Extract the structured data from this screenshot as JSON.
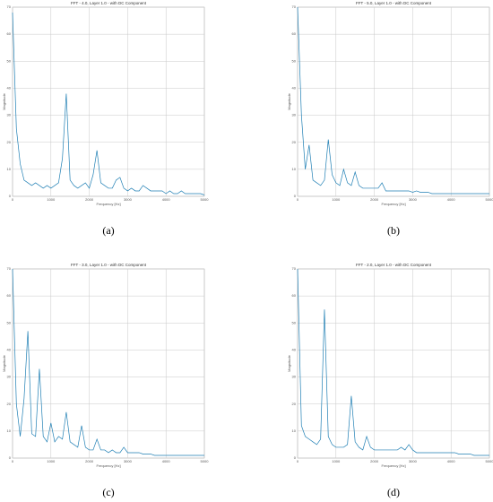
{
  "chart_data": [
    {
      "type": "line",
      "label": "(a)",
      "title": "FFT - 4.0, Layer 1.0 - with DC Component",
      "x_label": "Frequency [Hz]",
      "y_label": "Magnitude",
      "x": [
        0,
        100,
        200,
        300,
        400,
        500,
        600,
        700,
        800,
        900,
        1000,
        1100,
        1200,
        1300,
        1400,
        1500,
        1600,
        1700,
        1800,
        1900,
        2000,
        2100,
        2200,
        2300,
        2400,
        2500,
        2600,
        2700,
        2800,
        2900,
        3000,
        3100,
        3200,
        3300,
        3400,
        3500,
        3600,
        3700,
        3800,
        3900,
        4000,
        4100,
        4200,
        4300,
        4400,
        4500,
        4600,
        4700,
        4800,
        4900,
        5000
      ],
      "series": [
        {
          "name": "FFT",
          "color": "#1f7fb4",
          "values": [
            68,
            25,
            12,
            6,
            5,
            4,
            5,
            4,
            3,
            4,
            3,
            4,
            5,
            14,
            38,
            6,
            4,
            3,
            4,
            5,
            3,
            8,
            17,
            5,
            4,
            3,
            3,
            6,
            7,
            3,
            2,
            3,
            2,
            2,
            4,
            3,
            2,
            2,
            2,
            2,
            1,
            2,
            1,
            1,
            2,
            1,
            1,
            1,
            1,
            1,
            0.5
          ]
        }
      ],
      "xlim": [
        0,
        5000
      ],
      "xticks": [
        0,
        1000,
        2000,
        3000,
        4000,
        5000
      ],
      "ylim": [
        0,
        70
      ],
      "yticks": [
        0,
        10,
        20,
        30,
        40,
        50,
        60,
        70
      ],
      "grid": true
    },
    {
      "type": "line",
      "label": "(b)",
      "title": "FFT - 5.0, Layer 1.0 - with DC Component",
      "x_label": "Frequency [Hz]",
      "y_label": "Magnitude",
      "x": [
        0,
        100,
        200,
        300,
        400,
        500,
        600,
        700,
        800,
        900,
        1000,
        1100,
        1200,
        1300,
        1400,
        1500,
        1600,
        1700,
        1800,
        1900,
        2000,
        2100,
        2200,
        2300,
        2400,
        2500,
        2600,
        2700,
        2800,
        2900,
        3000,
        3100,
        3200,
        3300,
        3400,
        3500,
        3600,
        3700,
        3800,
        3900,
        4000,
        4100,
        4200,
        4300,
        4400,
        4500,
        4600,
        4700,
        4800,
        4900,
        5000
      ],
      "series": [
        {
          "name": "FFT",
          "color": "#1f7fb4",
          "values": [
            70,
            30,
            10,
            19,
            6,
            5,
            4,
            6,
            21,
            8,
            5,
            4,
            10,
            5,
            4,
            9,
            4,
            3,
            3,
            3,
            3,
            3,
            5,
            2,
            2,
            2,
            2,
            2,
            2,
            2,
            1.5,
            2,
            1.5,
            1.5,
            1.5,
            1,
            1,
            1,
            1,
            1,
            1,
            1,
            1,
            1,
            1,
            1,
            1,
            1,
            1,
            1,
            1
          ]
        }
      ],
      "xlim": [
        0,
        5000
      ],
      "xticks": [
        0,
        1000,
        2000,
        3000,
        4000,
        5000
      ],
      "ylim": [
        0,
        70
      ],
      "yticks": [
        0,
        10,
        20,
        30,
        40,
        50,
        60,
        70
      ],
      "grid": true
    },
    {
      "type": "line",
      "label": "(c)",
      "title": "FFT - 3.0, Layer 1.0 - with DC Component",
      "x_label": "Frequency [Hz]",
      "y_label": "Magnitude",
      "x": [
        0,
        100,
        200,
        300,
        400,
        500,
        600,
        700,
        800,
        900,
        1000,
        1100,
        1200,
        1300,
        1400,
        1500,
        1600,
        1700,
        1800,
        1900,
        2000,
        2100,
        2200,
        2300,
        2400,
        2500,
        2600,
        2700,
        2800,
        2900,
        3000,
        3100,
        3200,
        3300,
        3400,
        3500,
        3600,
        3700,
        3800,
        3900,
        4000,
        4100,
        4200,
        4300,
        4400,
        4500,
        4600,
        4700,
        4800,
        4900,
        5000
      ],
      "series": [
        {
          "name": "FFT",
          "color": "#1f7fb4",
          "values": [
            70,
            20,
            8,
            22,
            47,
            9,
            8,
            33,
            8,
            6,
            13,
            6,
            8,
            7,
            17,
            6,
            5,
            4,
            12,
            4,
            3,
            3,
            7,
            3,
            3,
            2,
            3,
            2,
            2,
            4,
            2,
            2,
            2,
            2,
            1.5,
            1.5,
            1.5,
            1,
            1,
            1,
            1,
            1,
            1,
            1,
            1,
            1,
            1,
            1,
            1,
            1,
            1
          ]
        }
      ],
      "xlim": [
        0,
        5000
      ],
      "xticks": [
        0,
        1000,
        2000,
        3000,
        4000,
        5000
      ],
      "ylim": [
        0,
        70
      ],
      "yticks": [
        0,
        10,
        20,
        30,
        40,
        50,
        60,
        70
      ],
      "grid": true
    },
    {
      "type": "line",
      "label": "(d)",
      "title": "FFT - 2.0, Layer 1.0 - with DC Component",
      "x_label": "Frequency [Hz]",
      "y_label": "Magnitude",
      "x": [
        0,
        100,
        200,
        300,
        400,
        500,
        600,
        700,
        800,
        900,
        1000,
        1100,
        1200,
        1300,
        1400,
        1500,
        1600,
        1700,
        1800,
        1900,
        2000,
        2100,
        2200,
        2300,
        2400,
        2500,
        2600,
        2700,
        2800,
        2900,
        3000,
        3100,
        3200,
        3300,
        3400,
        3500,
        3600,
        3700,
        3800,
        3900,
        4000,
        4100,
        4200,
        4300,
        4400,
        4500,
        4600,
        4700,
        4800,
        4900,
        5000
      ],
      "series": [
        {
          "name": "FFT",
          "color": "#1f7fb4",
          "values": [
            70,
            12,
            8,
            7,
            6,
            5,
            7,
            55,
            8,
            5,
            4,
            4,
            4,
            5,
            23,
            6,
            4,
            3,
            8,
            4,
            3,
            3,
            3,
            3,
            3,
            3,
            3,
            4,
            3,
            5,
            3,
            2,
            2,
            2,
            2,
            2,
            2,
            2,
            2,
            2,
            2,
            2,
            1.5,
            1.5,
            1.5,
            1.5,
            1,
            1,
            1,
            1,
            1
          ]
        }
      ],
      "xlim": [
        0,
        5000
      ],
      "xticks": [
        0,
        1000,
        2000,
        3000,
        4000,
        5000
      ],
      "ylim": [
        0,
        70
      ],
      "yticks": [
        0,
        10,
        20,
        30,
        40,
        50,
        60,
        70
      ],
      "grid": true
    }
  ]
}
